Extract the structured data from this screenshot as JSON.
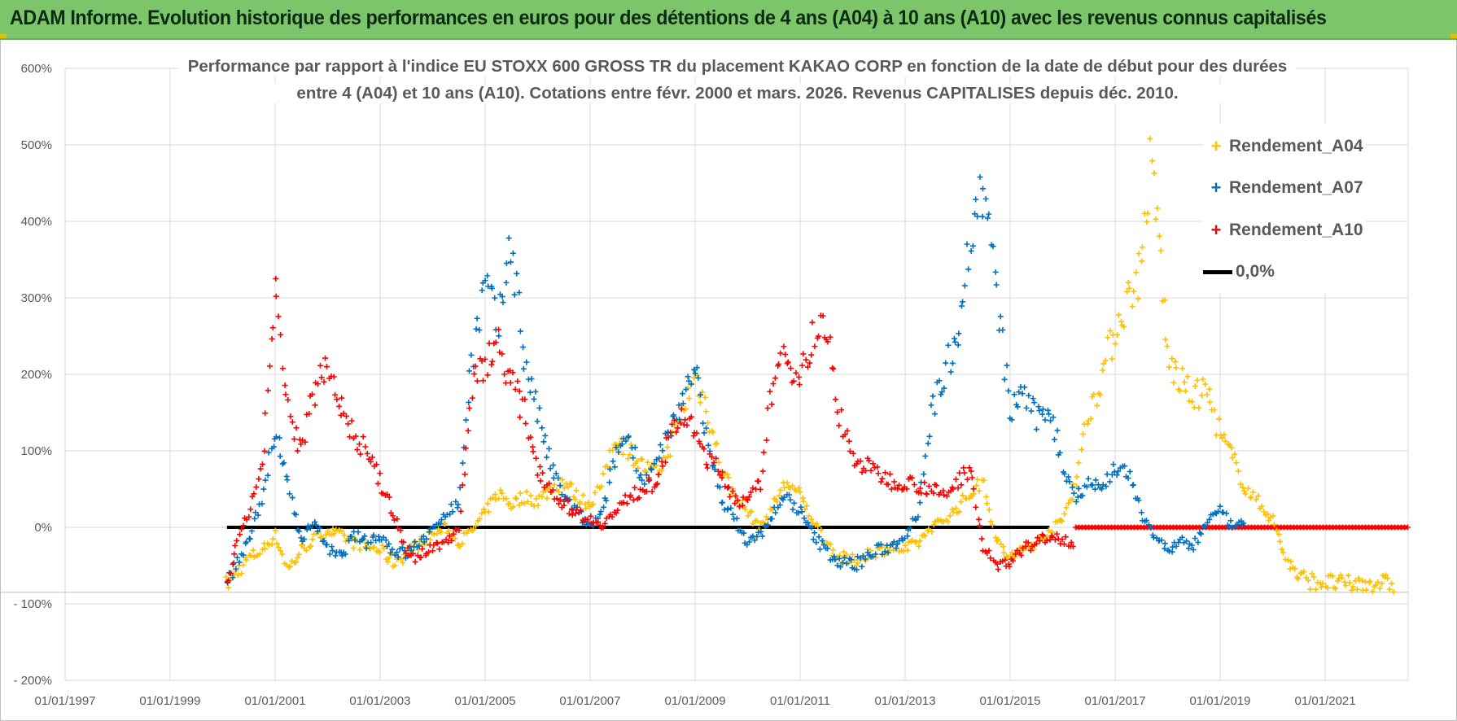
{
  "header": {
    "title": "ADAM Informe. Evolution historique des performances en euros pour des détentions de 4 ans (A04) à 10 ans (A10) avec les revenus connus capitalisés"
  },
  "colors": {
    "banner": "#7cc56b",
    "a04": "#ffc000",
    "a07": "#0070c0",
    "a10": "#ff0000",
    "zero": "#000000"
  },
  "chart_data": {
    "type": "scatter",
    "title_line1": "Performance par rapport à l'indice EU STOXX 600 GROSS TR  du placement KAKAO CORP en fonction de la date de début pour des durées",
    "title_line2": "entre 4 (A04) et 10 ans (A10). Cotations entre févr. 2000 et mars. 2026. Revenus CAPITALISES depuis déc. 2010.",
    "xlabel": "",
    "ylabel": "",
    "x_ticks": [
      "01/01/1997",
      "01/01/1999",
      "01/01/2001",
      "01/01/2003",
      "01/01/2005",
      "01/01/2007",
      "01/01/2009",
      "01/01/2011",
      "01/01/2013",
      "01/01/2015",
      "01/01/2017",
      "01/01/2019",
      "01/01/2021"
    ],
    "y_ticks": [
      "600%",
      "500%",
      "400%",
      "300%",
      "200%",
      "100%",
      "0%",
      "- 100%",
      "- 200%"
    ],
    "ylim": [
      -200,
      600
    ],
    "xlim": [
      "1997-01-01",
      "2022-08-01"
    ],
    "grid": true,
    "legend_position": "right",
    "series": [
      {
        "name": "Rendement_A04",
        "marker": "+",
        "color": "#ffc000",
        "points": [
          [
            "2000-02-01",
            -75
          ],
          [
            "2000-04-01",
            -60
          ],
          [
            "2000-07-01",
            -40
          ],
          [
            "2000-10-01",
            -30
          ],
          [
            "2001-01-01",
            -10
          ],
          [
            "2001-04-01",
            -55
          ],
          [
            "2001-07-01",
            -30
          ],
          [
            "2001-10-01",
            -15
          ],
          [
            "2002-01-01",
            -5
          ],
          [
            "2002-04-01",
            -10
          ],
          [
            "2002-07-01",
            -20
          ],
          [
            "2002-10-01",
            -25
          ],
          [
            "2003-01-01",
            -30
          ],
          [
            "2003-04-01",
            -45
          ],
          [
            "2003-07-01",
            -35
          ],
          [
            "2003-10-01",
            -20
          ],
          [
            "2004-01-01",
            -10
          ],
          [
            "2004-04-01",
            0
          ],
          [
            "2004-07-01",
            -20
          ],
          [
            "2004-10-01",
            -5
          ],
          [
            "2005-01-01",
            20
          ],
          [
            "2005-04-01",
            45
          ],
          [
            "2005-07-01",
            30
          ],
          [
            "2005-10-01",
            40
          ],
          [
            "2006-01-01",
            35
          ],
          [
            "2006-04-01",
            50
          ],
          [
            "2006-07-01",
            60
          ],
          [
            "2006-10-01",
            40
          ],
          [
            "2007-01-01",
            30
          ],
          [
            "2007-04-01",
            60
          ],
          [
            "2007-07-01",
            120
          ],
          [
            "2007-10-01",
            100
          ],
          [
            "2008-01-01",
            80
          ],
          [
            "2008-04-01",
            70
          ],
          [
            "2008-07-01",
            100
          ],
          [
            "2008-10-01",
            150
          ],
          [
            "2009-01-01",
            200
          ],
          [
            "2009-04-01",
            150
          ],
          [
            "2009-07-01",
            80
          ],
          [
            "2009-10-01",
            40
          ],
          [
            "2010-01-01",
            20
          ],
          [
            "2010-04-01",
            0
          ],
          [
            "2010-07-01",
            30
          ],
          [
            "2010-10-01",
            60
          ],
          [
            "2011-01-01",
            40
          ],
          [
            "2011-04-01",
            10
          ],
          [
            "2011-07-01",
            -20
          ],
          [
            "2011-10-01",
            -40
          ],
          [
            "2012-01-01",
            -45
          ],
          [
            "2012-04-01",
            -35
          ],
          [
            "2012-07-01",
            -30
          ],
          [
            "2012-10-01",
            -25
          ],
          [
            "2013-01-01",
            -30
          ],
          [
            "2013-04-01",
            -20
          ],
          [
            "2013-07-01",
            0
          ],
          [
            "2013-10-01",
            10
          ],
          [
            "2014-01-01",
            25
          ],
          [
            "2014-04-01",
            45
          ],
          [
            "2014-07-01",
            60
          ],
          [
            "2014-10-01",
            -20
          ],
          [
            "2015-01-01",
            -40
          ],
          [
            "2015-04-01",
            -30
          ],
          [
            "2015-07-01",
            -20
          ],
          [
            "2015-10-01",
            -5
          ],
          [
            "2016-01-01",
            10
          ],
          [
            "2016-04-01",
            60
          ],
          [
            "2016-07-01",
            150
          ],
          [
            "2016-10-01",
            200
          ],
          [
            "2017-01-01",
            260
          ],
          [
            "2017-04-01",
            300
          ],
          [
            "2017-07-01",
            340
          ],
          [
            "2017-09-01",
            470
          ],
          [
            "2017-11-01",
            380
          ],
          [
            "2018-01-01",
            220
          ],
          [
            "2018-04-01",
            190
          ],
          [
            "2018-07-01",
            170
          ],
          [
            "2018-10-01",
            180
          ],
          [
            "2019-01-01",
            120
          ],
          [
            "2019-04-01",
            90
          ],
          [
            "2019-07-01",
            50
          ],
          [
            "2019-10-01",
            30
          ],
          [
            "2020-01-01",
            10
          ],
          [
            "2020-04-01",
            -40
          ],
          [
            "2020-07-01",
            -65
          ],
          [
            "2020-10-01",
            -70
          ],
          [
            "2021-01-01",
            -72
          ],
          [
            "2021-07-01",
            -75
          ],
          [
            "2022-01-01",
            -72
          ],
          [
            "2022-05-01",
            -75
          ]
        ]
      },
      {
        "name": "Rendement_A07",
        "marker": "+",
        "color": "#0070c0",
        "points": [
          [
            "2000-02-01",
            -70
          ],
          [
            "2000-04-01",
            -50
          ],
          [
            "2000-07-01",
            -20
          ],
          [
            "2000-10-01",
            40
          ],
          [
            "2001-01-01",
            120
          ],
          [
            "2001-04-01",
            60
          ],
          [
            "2001-07-01",
            -20
          ],
          [
            "2001-10-01",
            10
          ],
          [
            "2002-01-01",
            -30
          ],
          [
            "2002-04-01",
            -40
          ],
          [
            "2002-07-01",
            -10
          ],
          [
            "2002-10-01",
            -20
          ],
          [
            "2003-01-01",
            -10
          ],
          [
            "2003-04-01",
            -30
          ],
          [
            "2003-07-01",
            -35
          ],
          [
            "2003-10-01",
            -20
          ],
          [
            "2004-01-01",
            -5
          ],
          [
            "2004-04-01",
            20
          ],
          [
            "2004-07-01",
            30
          ],
          [
            "2004-10-01",
            220
          ],
          [
            "2005-01-01",
            320
          ],
          [
            "2005-04-01",
            260
          ],
          [
            "2005-07-01",
            380
          ],
          [
            "2005-10-01",
            220
          ],
          [
            "2006-01-01",
            150
          ],
          [
            "2006-04-01",
            80
          ],
          [
            "2006-07-01",
            40
          ],
          [
            "2006-10-01",
            20
          ],
          [
            "2007-01-01",
            0
          ],
          [
            "2007-04-01",
            20
          ],
          [
            "2007-07-01",
            100
          ],
          [
            "2007-10-01",
            120
          ],
          [
            "2008-01-01",
            60
          ],
          [
            "2008-04-01",
            80
          ],
          [
            "2008-07-01",
            120
          ],
          [
            "2008-10-01",
            160
          ],
          [
            "2009-01-01",
            220
          ],
          [
            "2009-04-01",
            100
          ],
          [
            "2009-07-01",
            40
          ],
          [
            "2009-10-01",
            10
          ],
          [
            "2010-01-01",
            -20
          ],
          [
            "2010-04-01",
            -10
          ],
          [
            "2010-07-01",
            20
          ],
          [
            "2010-10-01",
            40
          ],
          [
            "2011-01-01",
            20
          ],
          [
            "2011-04-01",
            -10
          ],
          [
            "2011-07-01",
            -30
          ],
          [
            "2011-10-01",
            -45
          ],
          [
            "2012-01-01",
            -50
          ],
          [
            "2012-04-01",
            -40
          ],
          [
            "2012-07-01",
            -30
          ],
          [
            "2012-10-01",
            -25
          ],
          [
            "2013-01-01",
            -10
          ],
          [
            "2013-04-01",
            20
          ],
          [
            "2013-07-01",
            150
          ],
          [
            "2013-10-01",
            200
          ],
          [
            "2014-01-01",
            260
          ],
          [
            "2014-04-01",
            380
          ],
          [
            "2014-07-01",
            450
          ],
          [
            "2014-10-01",
            300
          ],
          [
            "2015-01-01",
            150
          ],
          [
            "2015-04-01",
            180
          ],
          [
            "2015-07-01",
            140
          ],
          [
            "2015-10-01",
            160
          ],
          [
            "2016-01-01",
            80
          ],
          [
            "2016-04-01",
            40
          ],
          [
            "2016-07-01",
            60
          ],
          [
            "2016-10-01",
            50
          ],
          [
            "2017-01-01",
            80
          ],
          [
            "2017-04-01",
            70
          ],
          [
            "2017-07-01",
            20
          ],
          [
            "2017-10-01",
            -10
          ],
          [
            "2018-01-01",
            -30
          ],
          [
            "2018-04-01",
            -20
          ],
          [
            "2018-07-01",
            -25
          ],
          [
            "2018-10-01",
            10
          ],
          [
            "2019-01-01",
            20
          ],
          [
            "2019-04-01",
            0
          ],
          [
            "2019-07-01",
            5
          ]
        ]
      },
      {
        "name": "Rendement_A10",
        "marker": "+",
        "color": "#ff0000",
        "points": [
          [
            "2000-02-01",
            -70
          ],
          [
            "2000-04-01",
            -30
          ],
          [
            "2000-07-01",
            20
          ],
          [
            "2000-10-01",
            80
          ],
          [
            "2001-01-01",
            300
          ],
          [
            "2001-04-01",
            150
          ],
          [
            "2001-07-01",
            100
          ],
          [
            "2001-10-01",
            180
          ],
          [
            "2002-01-01",
            220
          ],
          [
            "2002-04-01",
            160
          ],
          [
            "2002-07-01",
            120
          ],
          [
            "2002-10-01",
            100
          ],
          [
            "2003-01-01",
            60
          ],
          [
            "2003-04-01",
            20
          ],
          [
            "2003-07-01",
            -30
          ],
          [
            "2003-10-01",
            -40
          ],
          [
            "2004-01-01",
            -25
          ],
          [
            "2004-04-01",
            -20
          ],
          [
            "2004-07-01",
            0
          ],
          [
            "2004-10-01",
            180
          ],
          [
            "2005-01-01",
            220
          ],
          [
            "2005-04-01",
            240
          ],
          [
            "2005-07-01",
            190
          ],
          [
            "2005-10-01",
            150
          ],
          [
            "2006-01-01",
            80
          ],
          [
            "2006-04-01",
            50
          ],
          [
            "2006-07-01",
            30
          ],
          [
            "2006-10-01",
            20
          ],
          [
            "2007-01-01",
            10
          ],
          [
            "2007-04-01",
            5
          ],
          [
            "2007-07-01",
            20
          ],
          [
            "2007-10-01",
            40
          ],
          [
            "2008-01-01",
            50
          ],
          [
            "2008-04-01",
            60
          ],
          [
            "2008-07-01",
            110
          ],
          [
            "2008-10-01",
            150
          ],
          [
            "2009-01-01",
            120
          ],
          [
            "2009-04-01",
            90
          ],
          [
            "2009-07-01",
            70
          ],
          [
            "2009-10-01",
            40
          ],
          [
            "2010-01-01",
            30
          ],
          [
            "2010-04-01",
            60
          ],
          [
            "2010-07-01",
            200
          ],
          [
            "2010-10-01",
            220
          ],
          [
            "2011-01-01",
            200
          ],
          [
            "2011-04-01",
            250
          ],
          [
            "2011-07-01",
            260
          ],
          [
            "2011-10-01",
            150
          ],
          [
            "2012-01-01",
            90
          ],
          [
            "2012-04-01",
            80
          ],
          [
            "2012-07-01",
            70
          ],
          [
            "2012-10-01",
            60
          ],
          [
            "2013-01-01",
            60
          ],
          [
            "2013-04-01",
            55
          ],
          [
            "2013-07-01",
            50
          ],
          [
            "2013-10-01",
            40
          ],
          [
            "2014-01-01",
            60
          ],
          [
            "2014-04-01",
            80
          ],
          [
            "2014-07-01",
            -30
          ],
          [
            "2014-10-01",
            -50
          ],
          [
            "2015-01-01",
            -45
          ],
          [
            "2015-04-01",
            -30
          ],
          [
            "2015-07-01",
            -20
          ],
          [
            "2015-10-01",
            -10
          ],
          [
            "2016-01-01",
            -15
          ],
          [
            "2016-04-01",
            -20
          ]
        ]
      },
      {
        "name": "0,0%",
        "marker": "line",
        "color": "#000000",
        "points": [
          [
            "2000-02-01",
            0
          ],
          [
            "2015-10-01",
            0
          ]
        ]
      }
    ],
    "flat_zero_segment": {
      "color": "#ff0000",
      "x_from": "2016-04-01",
      "x_to": "2022-08-01",
      "value": 0
    }
  }
}
